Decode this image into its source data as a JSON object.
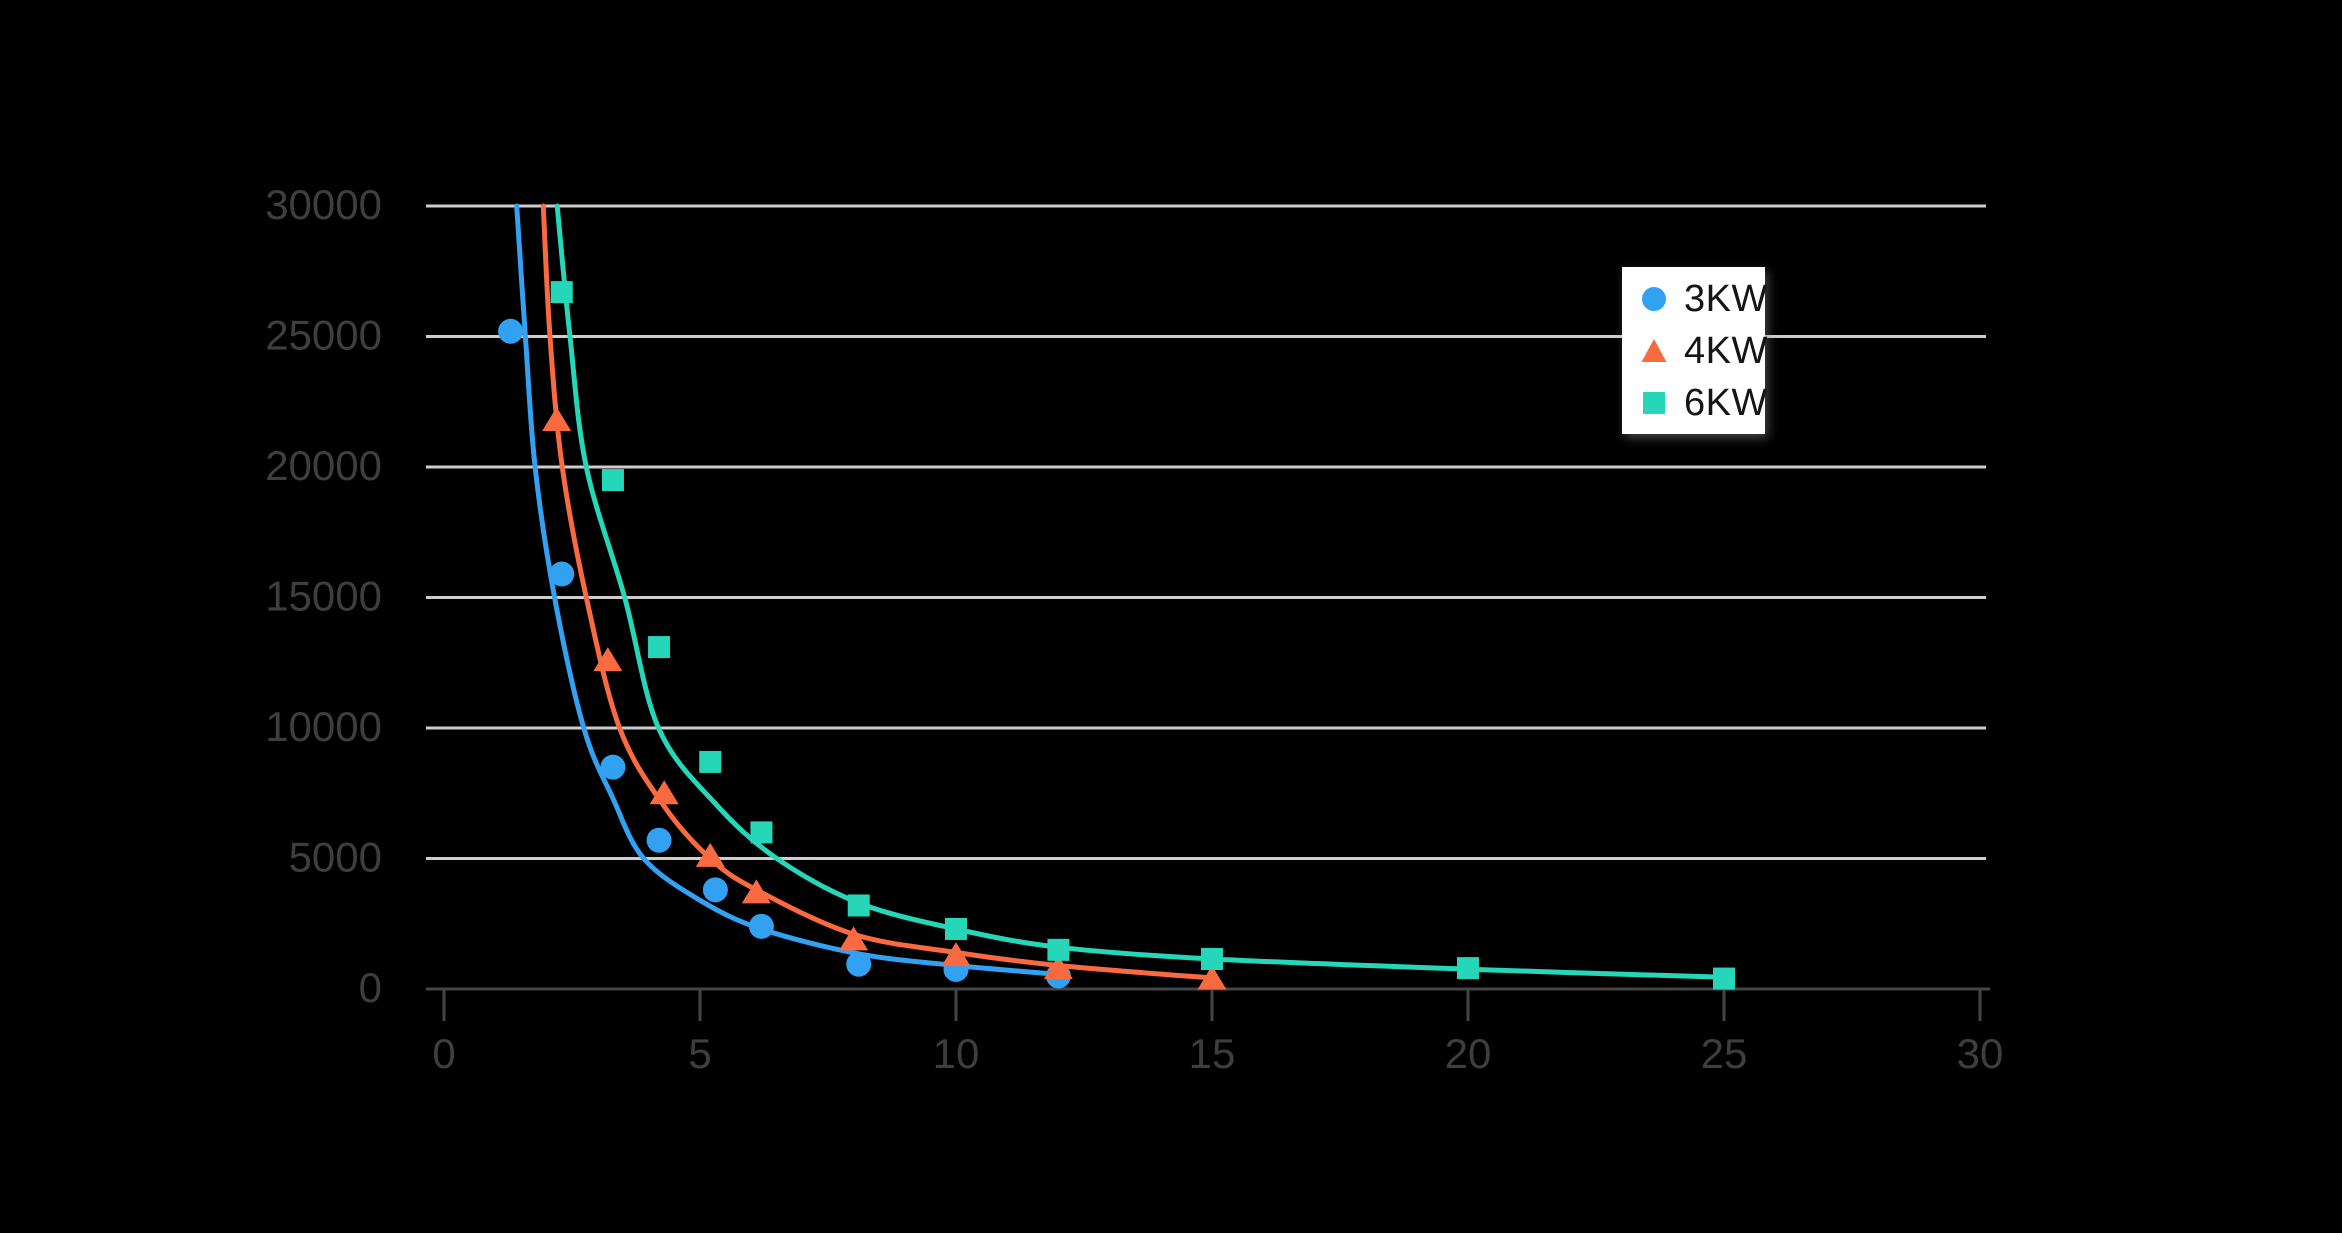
{
  "background_color": "#000000",
  "chart_data": {
    "type": "scatter",
    "title": "",
    "xlabel": "",
    "ylabel": "",
    "xlim": [
      0,
      30
    ],
    "ylim": [
      0,
      30000
    ],
    "x_ticks": [
      0,
      5,
      10,
      15,
      20,
      25,
      30
    ],
    "y_ticks": [
      0,
      5000,
      10000,
      15000,
      20000,
      25000,
      30000
    ],
    "grid": "horizontal",
    "legend_position": "top-right",
    "grid_color": "#CDCDCD",
    "axis_color": "#454545",
    "tick_label_color": "#3E3E3E",
    "legend_bg_color": "#FFFFFF",
    "legend_text_color": "#151515",
    "series": [
      {
        "name": "3KW",
        "marker": "circle",
        "color": "#32A1F1",
        "points": [
          [
            1.3,
            25200
          ],
          [
            2.3,
            15900
          ],
          [
            3.3,
            8500
          ],
          [
            4.2,
            5700
          ],
          [
            5.3,
            3800
          ],
          [
            6.2,
            2400
          ],
          [
            8.1,
            950
          ],
          [
            10,
            750
          ],
          [
            12,
            500
          ]
        ],
        "trend_curve": [
          [
            1.42,
            30000
          ],
          [
            1.59,
            25000
          ],
          [
            1.78,
            20000
          ],
          [
            2.16,
            15000
          ],
          [
            2.73,
            10000
          ],
          [
            3.3,
            7300
          ],
          [
            3.9,
            5000
          ],
          [
            5.0,
            3400
          ],
          [
            6.2,
            2300
          ],
          [
            8.1,
            1350
          ],
          [
            10,
            900
          ],
          [
            12,
            560
          ]
        ]
      },
      {
        "name": "4KW",
        "marker": "triangle",
        "color": "#F96A40",
        "points": [
          [
            2.2,
            21800
          ],
          [
            3.2,
            12600
          ],
          [
            4.3,
            7500
          ],
          [
            5.2,
            5100
          ],
          [
            6.1,
            3700
          ],
          [
            8,
            1900
          ],
          [
            10,
            1300
          ],
          [
            12,
            800
          ],
          [
            15,
            400
          ]
        ],
        "trend_curve": [
          [
            1.94,
            30000
          ],
          [
            2.07,
            25000
          ],
          [
            2.31,
            20000
          ],
          [
            2.78,
            15000
          ],
          [
            3.43,
            10000
          ],
          [
            4.3,
            7000
          ],
          [
            5.2,
            5000
          ],
          [
            6.1,
            3800
          ],
          [
            8,
            2100
          ],
          [
            10,
            1400
          ],
          [
            12,
            900
          ],
          [
            15,
            420
          ]
        ]
      },
      {
        "name": "6KW",
        "marker": "square",
        "color": "#25D7B8",
        "points": [
          [
            2.3,
            26700
          ],
          [
            3.3,
            19500
          ],
          [
            4.2,
            13100
          ],
          [
            5.2,
            8700
          ],
          [
            6.2,
            6000
          ],
          [
            8.1,
            3200
          ],
          [
            10,
            2300
          ],
          [
            12,
            1500
          ],
          [
            15,
            1150
          ],
          [
            20,
            800
          ],
          [
            25,
            400
          ]
        ],
        "trend_curve": [
          [
            2.21,
            30000
          ],
          [
            2.46,
            25000
          ],
          [
            2.78,
            20000
          ],
          [
            3.53,
            15000
          ],
          [
            4.19,
            10000
          ],
          [
            5.3,
            7100
          ],
          [
            6.5,
            5000
          ],
          [
            8.1,
            3300
          ],
          [
            10,
            2300
          ],
          [
            12,
            1600
          ],
          [
            15,
            1150
          ],
          [
            20,
            760
          ],
          [
            25,
            450
          ]
        ]
      }
    ]
  }
}
